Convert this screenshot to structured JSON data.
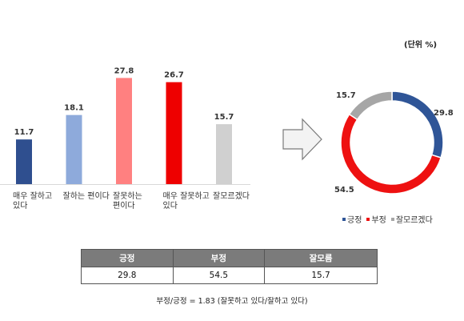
{
  "chart_data": [
    {
      "type": "bar",
      "categories": [
        [
          "매우 잘하고",
          "있다"
        ],
        [
          "잘하는 편이다"
        ],
        [
          "잘못하는",
          "편이다"
        ],
        [
          "매우 잘못하고",
          "있다"
        ],
        [
          "잘모르겠다"
        ]
      ],
      "values": [
        11.7,
        18.1,
        27.8,
        26.7,
        15.7
      ],
      "value_labels": [
        "11.7",
        "18.1",
        "27.8",
        "26.7",
        "15.7"
      ],
      "colors": [
        "#2f4f8f",
        "#8eaadb",
        "#ff8080",
        "#ee0000",
        "#d0d0d0"
      ],
      "ylim": [
        0,
        30
      ],
      "grid": false
    },
    {
      "type": "pie",
      "style": "donut",
      "labels": [
        "긍정",
        "부정",
        "잘모르겠다"
      ],
      "values": [
        29.8,
        54.5,
        15.7
      ],
      "value_labels": [
        "29.8",
        "54.5",
        "15.7"
      ],
      "colors": [
        "#2f5597",
        "#ee1111",
        "#a6a6a6"
      ],
      "legend_placement": "bottom"
    }
  ],
  "unit_label": "(단위 %)",
  "legend": [
    {
      "label": "긍정",
      "color": "#2f5597"
    },
    {
      "label": "부정",
      "color": "#ee1111"
    },
    {
      "label": "잘모르겠다",
      "color": "#a6a6a6"
    }
  ],
  "table": {
    "headers": [
      "긍정",
      "부정",
      "잘모름"
    ],
    "values": [
      "29.8",
      "54.5",
      "15.7"
    ]
  },
  "footnote": "부정/긍정 = 1.83 (잘못하고 있다/잘하고 있다)",
  "icons": {
    "arrow": "right-arrow-icon"
  }
}
